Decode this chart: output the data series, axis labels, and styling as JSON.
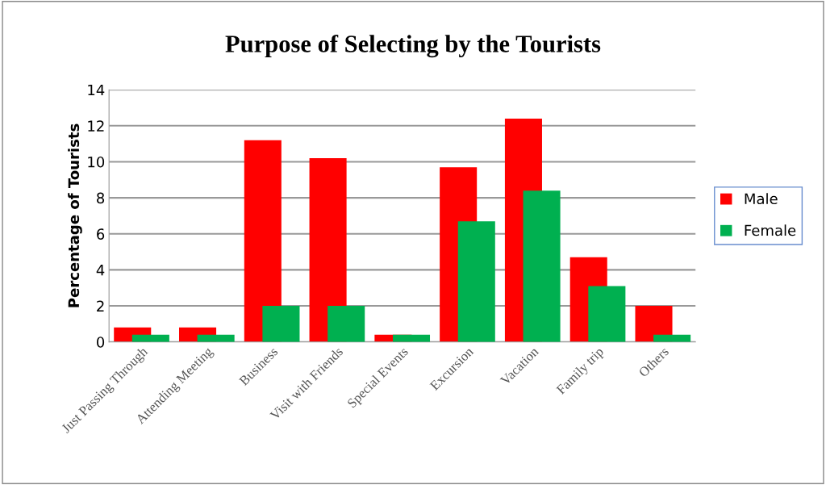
{
  "chart_data": {
    "type": "bar",
    "title": "Purpose of Selecting by the Tourists",
    "ylabel": "Percentage of Tourists",
    "categories": [
      "Just Passing Through",
      "Attending Meeting",
      "Business",
      "Visit with Friends",
      "Special Events",
      "Excursion",
      "Vacation",
      "Family trip",
      "Others"
    ],
    "series": [
      {
        "name": "Male",
        "color": "#ff0000",
        "values": [
          0.8,
          0.8,
          11.2,
          10.2,
          0.4,
          9.7,
          12.4,
          4.7,
          2.0
        ]
      },
      {
        "name": "Female",
        "color": "#00b050",
        "values": [
          0.4,
          0.4,
          2.0,
          2.0,
          0.4,
          6.7,
          8.4,
          3.1,
          0.4
        ]
      }
    ],
    "ylim": [
      0,
      14
    ],
    "yticks": [
      0,
      2,
      4,
      6,
      8,
      10,
      12,
      14
    ],
    "grid": "y",
    "legend": "right"
  }
}
